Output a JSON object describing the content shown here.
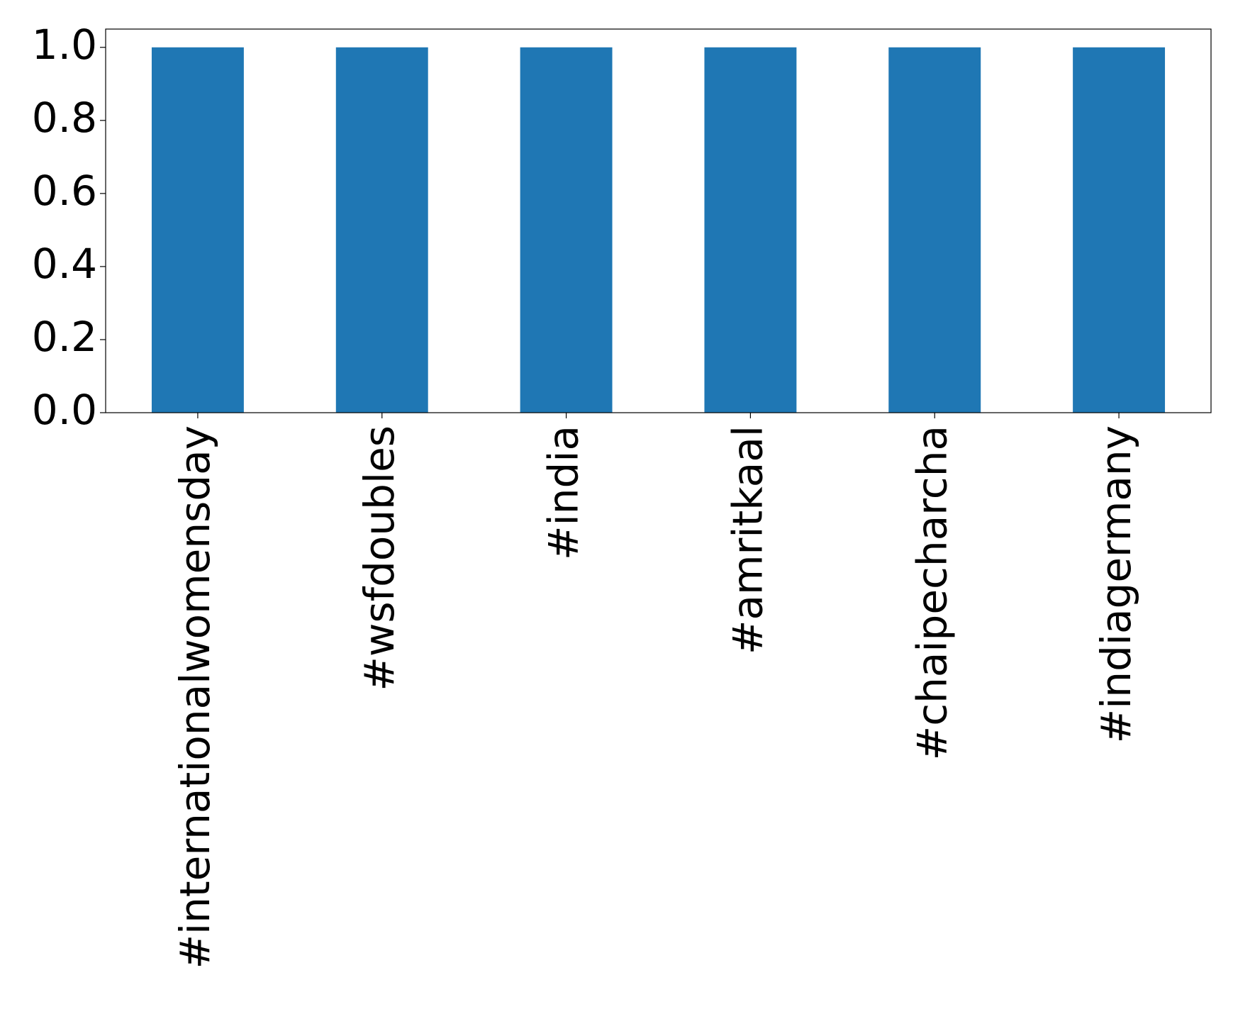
{
  "chart_data": {
    "type": "bar",
    "categories": [
      "#internationalwomensday",
      "#wsfdoubles",
      "#india",
      "#amritkaal",
      "#chaipecharcha",
      "#indiagermany"
    ],
    "values": [
      1,
      1,
      1,
      1,
      1,
      1
    ],
    "color": "#1f77b4",
    "ylim": [
      0,
      1.05
    ],
    "yticks": [
      {
        "value": 0,
        "label": "0.0"
      },
      {
        "value": 0.2,
        "label": "0.2"
      },
      {
        "value": 0.4,
        "label": "0.4"
      },
      {
        "value": 0.6,
        "label": "0.6"
      },
      {
        "value": 0.8,
        "label": "0.8"
      },
      {
        "value": 1,
        "label": "1.0"
      }
    ],
    "grid": false
  }
}
